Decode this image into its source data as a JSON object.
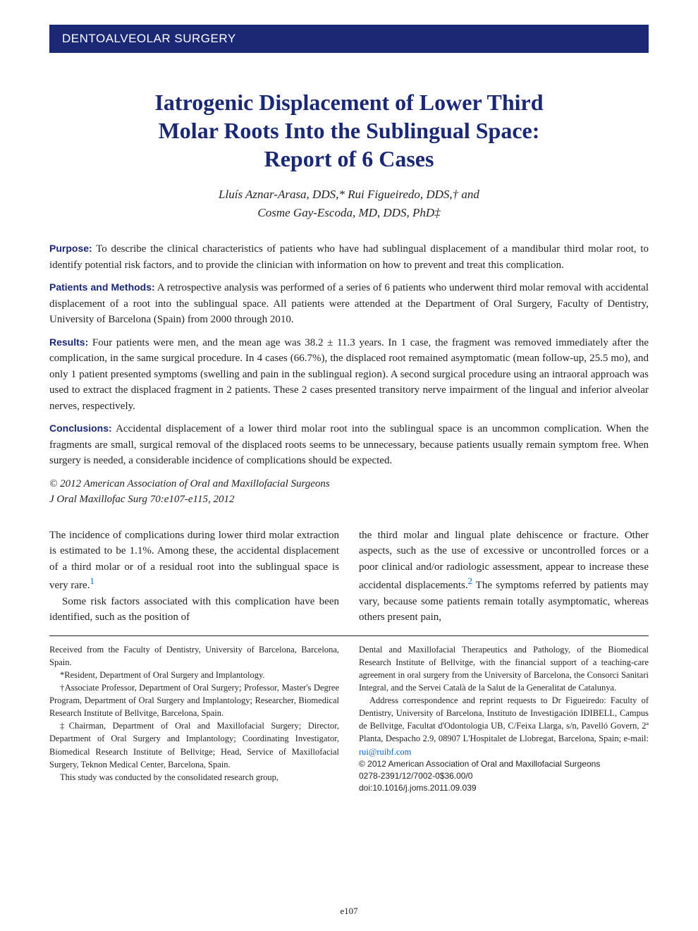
{
  "section_header": "DENTOALVEOLAR SURGERY",
  "title_line1": "Iatrogenic Displacement of Lower Third",
  "title_line2": "Molar Roots Into the Sublingual Space:",
  "title_line3": "Report of 6 Cases",
  "authors_line1": "Lluís Aznar-Arasa, DDS,* Rui Figueiredo, DDS,† and",
  "authors_line2": "Cosme Gay-Escoda, MD, DDS, PhD‡",
  "abstract": {
    "purpose_label": "Purpose:",
    "purpose": "To describe the clinical characteristics of patients who have had sublingual displacement of a mandibular third molar root, to identify potential risk factors, and to provide the clinician with information on how to prevent and treat this complication.",
    "methods_label": "Patients and Methods:",
    "methods": "A retrospective analysis was performed of a series of 6 patients who underwent third molar removal with accidental displacement of a root into the sublingual space. All patients were attended at the Department of Oral Surgery, Faculty of Dentistry, University of Barcelona (Spain) from 2000 through 2010.",
    "results_label": "Results:",
    "results": "Four patients were men, and the mean age was 38.2 ± 11.3 years. In 1 case, the fragment was removed immediately after the complication, in the same surgical procedure. In 4 cases (66.7%), the displaced root remained asymptomatic (mean follow-up, 25.5 mo), and only 1 patient presented symptoms (swelling and pain in the sublingual region). A second surgical procedure using an intraoral approach was used to extract the displaced fragment in 2 patients. These 2 cases presented transitory nerve impairment of the lingual and inferior alveolar nerves, respectively.",
    "conclusions_label": "Conclusions:",
    "conclusions": "Accidental displacement of a lower third molar root into the sublingual space is an uncommon complication. When the fragments are small, surgical removal of the displaced roots seems to be unnecessary, because patients usually remain symptom free. When surgery is needed, a considerable incidence of complications should be expected.",
    "copyright": "© 2012 American Association of Oral and Maxillofacial Surgeons",
    "citation": "J Oral Maxillofac Surg 70:e107-e115, 2012"
  },
  "body": {
    "left_p1a": "The incidence of complications during lower third molar extraction is estimated to be 1.1%. Among these, the accidental displacement of a third molar or of a residual root into the sublingual space is very rare.",
    "left_p1_ref": "1",
    "left_p2": "Some risk factors associated with this complication have been identified, such as the position of",
    "right_p1a": "the third molar and lingual plate dehiscence or fracture. Other aspects, such as the use of excessive or uncontrolled forces or a poor clinical and/or radiologic assessment, appear to increase these accidental displacements.",
    "right_p1_ref": "2",
    "right_p1b": " The symptoms referred by patients may vary, because some patients remain totally asymptomatic, whereas others present pain,"
  },
  "footnotes": {
    "left": {
      "received": "Received from the Faculty of Dentistry, University of Barcelona, Barcelona, Spain.",
      "aff1": "*Resident, Department of Oral Surgery and Implantology.",
      "aff2": "†Associate Professor, Department of Oral Surgery; Professor, Master's Degree Program, Department of Oral Surgery and Implantology; Researcher, Biomedical Research Institute of Bellvitge, Barcelona, Spain.",
      "aff3": "‡Chairman, Department of Oral and Maxillofacial Surgery; Director, Department of Oral Surgery and Implantology; Coordinating Investigator, Biomedical Research Institute of Bellvitge; Head, Service of Maxillofacial Surgery, Teknon Medical Center, Barcelona, Spain.",
      "study": "This study was conducted by the consolidated research group,"
    },
    "right": {
      "funding": "Dental and Maxillofacial Therapeutics and Pathology, of the Biomedical Research Institute of Bellvitge, with the financial support of a teaching-care agreement in oral surgery from the University of Barcelona, the Consorci Sanitari Integral, and the Servei Català de la Salut de la Generalitat de Catalunya.",
      "correspondence_a": "Address correspondence and reprint requests to Dr Figueiredo: Faculty of Dentistry, University of Barcelona, Instituto de Investigación IDIBELL, Campus de Bellvitge, Facultat d'Odontologia UB, C/Feixa Llarga, s/n, Pavelló Govern, 2ª Planta, Despacho 2.9, 08907 L'Hospitalet de Llobregat, Barcelona, Spain; e-mail: ",
      "email": "rui@ruibf.com",
      "copyright2": "© 2012 American Association of Oral and Maxillofacial Surgeons",
      "code": "0278-2391/12/7002-0$36.00/0",
      "doi": "doi:10.1016/j.joms.2011.09.039"
    }
  },
  "page_number": "e107",
  "colors": {
    "header_bg": "#1a2876",
    "header_text": "#ffffff",
    "title_color": "#1a2876",
    "body_text": "#231f20",
    "link": "#0066cc"
  },
  "typography": {
    "title_fontsize": 32,
    "authors_fontsize": 17,
    "abstract_fontsize": 15,
    "body_fontsize": 15,
    "footnote_fontsize": 12.5,
    "section_header_fontsize": 17
  }
}
